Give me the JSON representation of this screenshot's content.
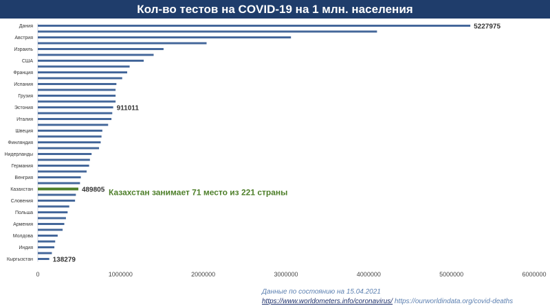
{
  "title": "Кол-во тестов на COVID-19 на 1 млн. населения",
  "colors": {
    "title_bg": "#1f3d6b",
    "bar": "#44679a",
    "highlight_bar": "#4e7f2a",
    "annotation": "#4e7f2a"
  },
  "annotation": "Казахстан занимает 71 место из 221 страны",
  "source": {
    "date": "Данные по состоянию на 15.04.2021",
    "link1": "https://www.worldometers.info/coronavirus/",
    "link2": "https://ourworldindata.org/covid-deaths"
  },
  "chart_data": {
    "type": "bar",
    "orientation": "horizontal",
    "categories": [
      "Дания",
      "",
      "Австрия",
      "",
      "Израиль",
      "",
      "США",
      "",
      "Франция",
      "",
      "Испания",
      "",
      "Грузия",
      "",
      "Эстония",
      "",
      "Италия",
      "",
      "Швеция",
      "",
      "Финляндия",
      "",
      "Нидерланды",
      "",
      "Германия",
      "",
      "Венгрия",
      "",
      "Казахстан",
      "",
      "Словения",
      "",
      "Польша",
      "",
      "Армения",
      "",
      "Молдова",
      "",
      "Индия",
      "",
      "Кыргызстан"
    ],
    "values": [
      5227975,
      4100000,
      3060000,
      2040000,
      1520000,
      1400000,
      1280000,
      1110000,
      1080000,
      1020000,
      950000,
      940000,
      940000,
      940000,
      911011,
      900000,
      890000,
      850000,
      780000,
      770000,
      760000,
      740000,
      650000,
      630000,
      620000,
      590000,
      520000,
      510000,
      489805,
      460000,
      450000,
      380000,
      360000,
      340000,
      320000,
      300000,
      240000,
      210000,
      200000,
      170000,
      138279
    ],
    "highlight_index": 28,
    "data_labels": [
      {
        "index": 0,
        "text": "5227975"
      },
      {
        "index": 14,
        "text": "911011"
      },
      {
        "index": 28,
        "text": "489805"
      },
      {
        "index": 40,
        "text": "138279"
      }
    ],
    "xlim": [
      0,
      6000000
    ],
    "xticks": [
      "0",
      "1000000",
      "2000000",
      "3000000",
      "4000000",
      "5000000",
      "6000000"
    ],
    "grid": false
  }
}
